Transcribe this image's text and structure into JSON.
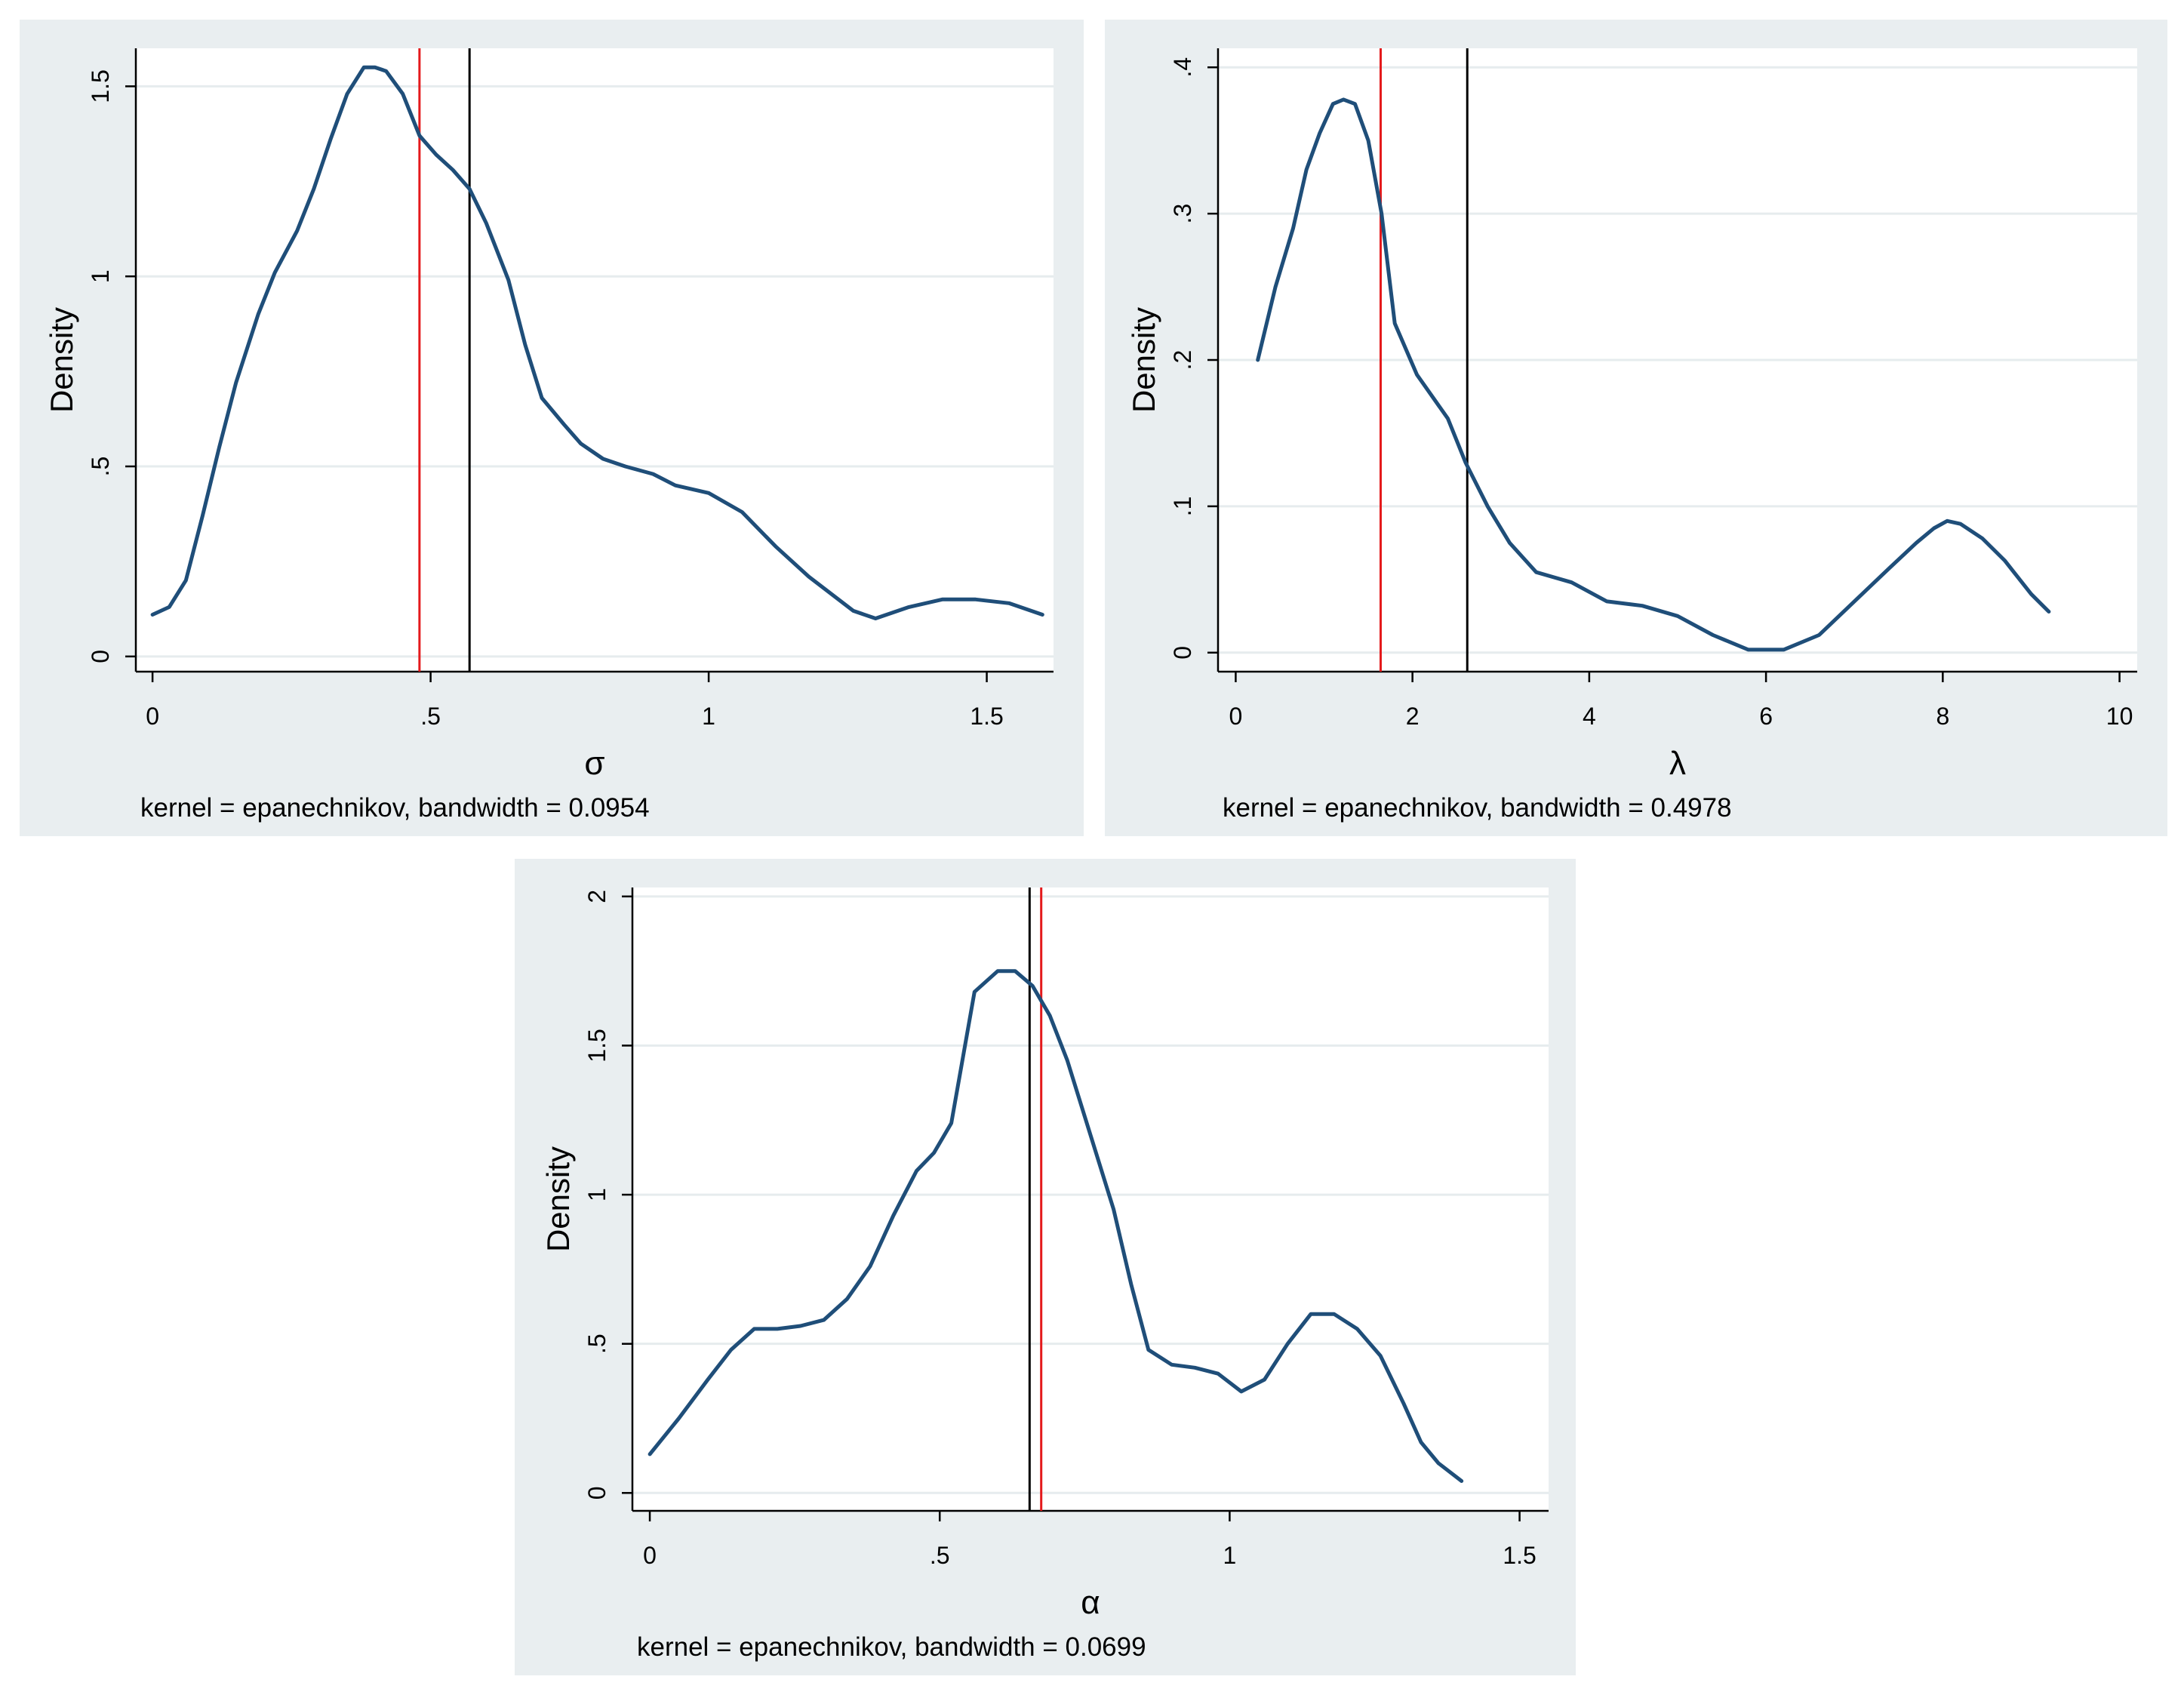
{
  "colors": {
    "panel_bg": "#e9eef0",
    "plot_bg": "#ffffff",
    "grid": "#e6ecee",
    "curve": "#1f4e79",
    "red_line": "#e41a1c",
    "black_line": "#000000",
    "text": "#000000"
  },
  "chart_data": [
    {
      "type": "line",
      "title": "",
      "xlabel": "σ",
      "ylabel": "Density",
      "note": "kernel = epanechnikov, bandwidth = 0.0954",
      "xlim": [
        -0.03,
        1.62
      ],
      "ylim": [
        -0.04,
        1.6
      ],
      "xticks": [
        0,
        0.5,
        1,
        1.5
      ],
      "xtick_labels": [
        "0",
        ".5",
        "1",
        "1.5"
      ],
      "yticks": [
        0,
        0.5,
        1,
        1.5
      ],
      "ytick_labels": [
        "0",
        ".5",
        "1",
        "1.5"
      ],
      "grid": true,
      "vlines": [
        {
          "x": 0.48,
          "color": "red"
        },
        {
          "x": 0.57,
          "color": "black"
        }
      ],
      "series": [
        {
          "name": "density",
          "x": [
            0,
            0.03,
            0.06,
            0.09,
            0.12,
            0.15,
            0.19,
            0.22,
            0.26,
            0.29,
            0.32,
            0.35,
            0.38,
            0.4,
            0.42,
            0.45,
            0.48,
            0.51,
            0.54,
            0.57,
            0.6,
            0.64,
            0.67,
            0.7,
            0.74,
            0.77,
            0.81,
            0.85,
            0.9,
            0.94,
            1.0,
            1.06,
            1.12,
            1.18,
            1.26,
            1.3,
            1.36,
            1.42,
            1.48,
            1.54,
            1.6
          ],
          "y": [
            0.11,
            0.13,
            0.2,
            0.37,
            0.55,
            0.72,
            0.9,
            1.01,
            1.12,
            1.23,
            1.36,
            1.48,
            1.55,
            1.55,
            1.54,
            1.48,
            1.37,
            1.32,
            1.28,
            1.23,
            1.14,
            0.99,
            0.82,
            0.68,
            0.61,
            0.56,
            0.52,
            0.5,
            0.48,
            0.45,
            0.43,
            0.38,
            0.29,
            0.21,
            0.12,
            0.1,
            0.13,
            0.15,
            0.15,
            0.14,
            0.11
          ]
        }
      ]
    },
    {
      "type": "line",
      "title": "",
      "xlabel": "λ",
      "ylabel": "Density",
      "note": "kernel = epanechnikov, bandwidth = 0.4978",
      "xlim": [
        -0.2,
        10.2
      ],
      "ylim": [
        -0.013,
        0.413
      ],
      "xticks": [
        0,
        2,
        4,
        6,
        8,
        10
      ],
      "xtick_labels": [
        "0",
        "2",
        "4",
        "6",
        "8",
        "10"
      ],
      "yticks": [
        0,
        0.1,
        0.2,
        0.3,
        0.4
      ],
      "ytick_labels": [
        "0",
        ".1",
        ".2",
        ".3",
        ".4"
      ],
      "grid": true,
      "vlines": [
        {
          "x": 1.64,
          "color": "red"
        },
        {
          "x": 2.62,
          "color": "black"
        }
      ],
      "series": [
        {
          "name": "density",
          "x": [
            0.25,
            0.45,
            0.65,
            0.8,
            0.95,
            1.1,
            1.22,
            1.35,
            1.5,
            1.65,
            1.8,
            2.05,
            2.4,
            2.6,
            2.85,
            3.1,
            3.4,
            3.8,
            4.2,
            4.6,
            5.0,
            5.4,
            5.8,
            6.2,
            6.6,
            7.0,
            7.4,
            7.7,
            7.9,
            8.05,
            8.2,
            8.45,
            8.7,
            9.0,
            9.2
          ],
          "y": [
            0.2,
            0.25,
            0.29,
            0.33,
            0.355,
            0.375,
            0.378,
            0.375,
            0.35,
            0.3,
            0.225,
            0.19,
            0.16,
            0.13,
            0.1,
            0.075,
            0.055,
            0.048,
            0.035,
            0.032,
            0.025,
            0.012,
            0.002,
            0.002,
            0.012,
            0.035,
            0.058,
            0.075,
            0.085,
            0.09,
            0.088,
            0.078,
            0.063,
            0.04,
            0.028
          ]
        }
      ]
    },
    {
      "type": "line",
      "title": "",
      "xlabel": "α",
      "ylabel": "Density",
      "note": "kernel = epanechnikov, bandwidth = 0.0699",
      "xlim": [
        -0.03,
        1.55
      ],
      "ylim": [
        -0.06,
        2.03
      ],
      "xticks": [
        0,
        0.5,
        1,
        1.5
      ],
      "xtick_labels": [
        "0",
        ".5",
        "1",
        "1.5"
      ],
      "yticks": [
        0,
        0.5,
        1,
        1.5,
        2
      ],
      "ytick_labels": [
        "0",
        ".5",
        "1",
        "1.5",
        "2"
      ],
      "grid": true,
      "vlines": [
        {
          "x": 0.655,
          "color": "black"
        },
        {
          "x": 0.675,
          "color": "red"
        }
      ],
      "series": [
        {
          "name": "density",
          "x": [
            0,
            0.05,
            0.1,
            0.14,
            0.18,
            0.22,
            0.26,
            0.3,
            0.34,
            0.38,
            0.42,
            0.46,
            0.49,
            0.52,
            0.56,
            0.6,
            0.63,
            0.66,
            0.69,
            0.72,
            0.76,
            0.8,
            0.83,
            0.86,
            0.9,
            0.94,
            0.98,
            1.02,
            1.06,
            1.1,
            1.14,
            1.18,
            1.22,
            1.26,
            1.3,
            1.33,
            1.36,
            1.4
          ],
          "y": [
            0.13,
            0.25,
            0.38,
            0.48,
            0.55,
            0.55,
            0.56,
            0.58,
            0.65,
            0.76,
            0.93,
            1.08,
            1.14,
            1.24,
            1.68,
            1.75,
            1.75,
            1.7,
            1.6,
            1.45,
            1.2,
            0.95,
            0.7,
            0.48,
            0.43,
            0.42,
            0.4,
            0.34,
            0.38,
            0.5,
            0.6,
            0.6,
            0.55,
            0.46,
            0.3,
            0.17,
            0.1,
            0.04
          ]
        }
      ]
    }
  ]
}
